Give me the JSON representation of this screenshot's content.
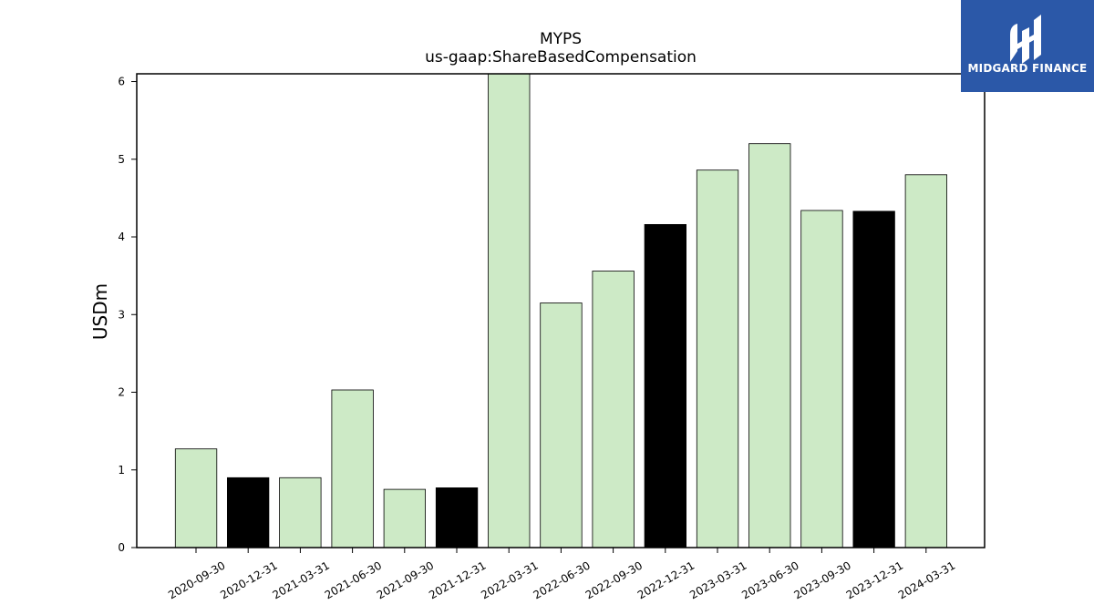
{
  "logo": {
    "text": "MIDGARD FINANCE",
    "background": "#2b58a8"
  },
  "colors": {
    "fill_light": "#cdeac6",
    "fill_dark": "#000000",
    "outline": "#000000"
  },
  "chart_data": {
    "type": "bar",
    "title": "MYPS",
    "subtitle": "us-gaap:ShareBasedCompensation",
    "xlabel": "",
    "ylabel": "USDm",
    "ylim": [
      0,
      6.1
    ],
    "yticks": [
      0,
      1,
      2,
      3,
      4,
      5,
      6
    ],
    "grid": false,
    "categories": [
      "2020-09-30",
      "2020-12-31",
      "2021-03-31",
      "2021-06-30",
      "2021-09-30",
      "2021-12-31",
      "2022-03-31",
      "2022-06-30",
      "2022-09-30",
      "2022-12-31",
      "2023-03-31",
      "2023-06-30",
      "2023-09-30",
      "2023-12-31",
      "2024-03-31"
    ],
    "values": [
      1.27,
      0.9,
      0.9,
      2.03,
      0.75,
      0.77,
      6.1,
      3.15,
      3.56,
      4.16,
      4.86,
      5.2,
      4.34,
      4.33,
      4.8
    ],
    "bar_colors": [
      "light",
      "dark",
      "light",
      "light",
      "light",
      "dark",
      "light",
      "light",
      "light",
      "dark",
      "light",
      "light",
      "light",
      "dark",
      "light"
    ]
  }
}
